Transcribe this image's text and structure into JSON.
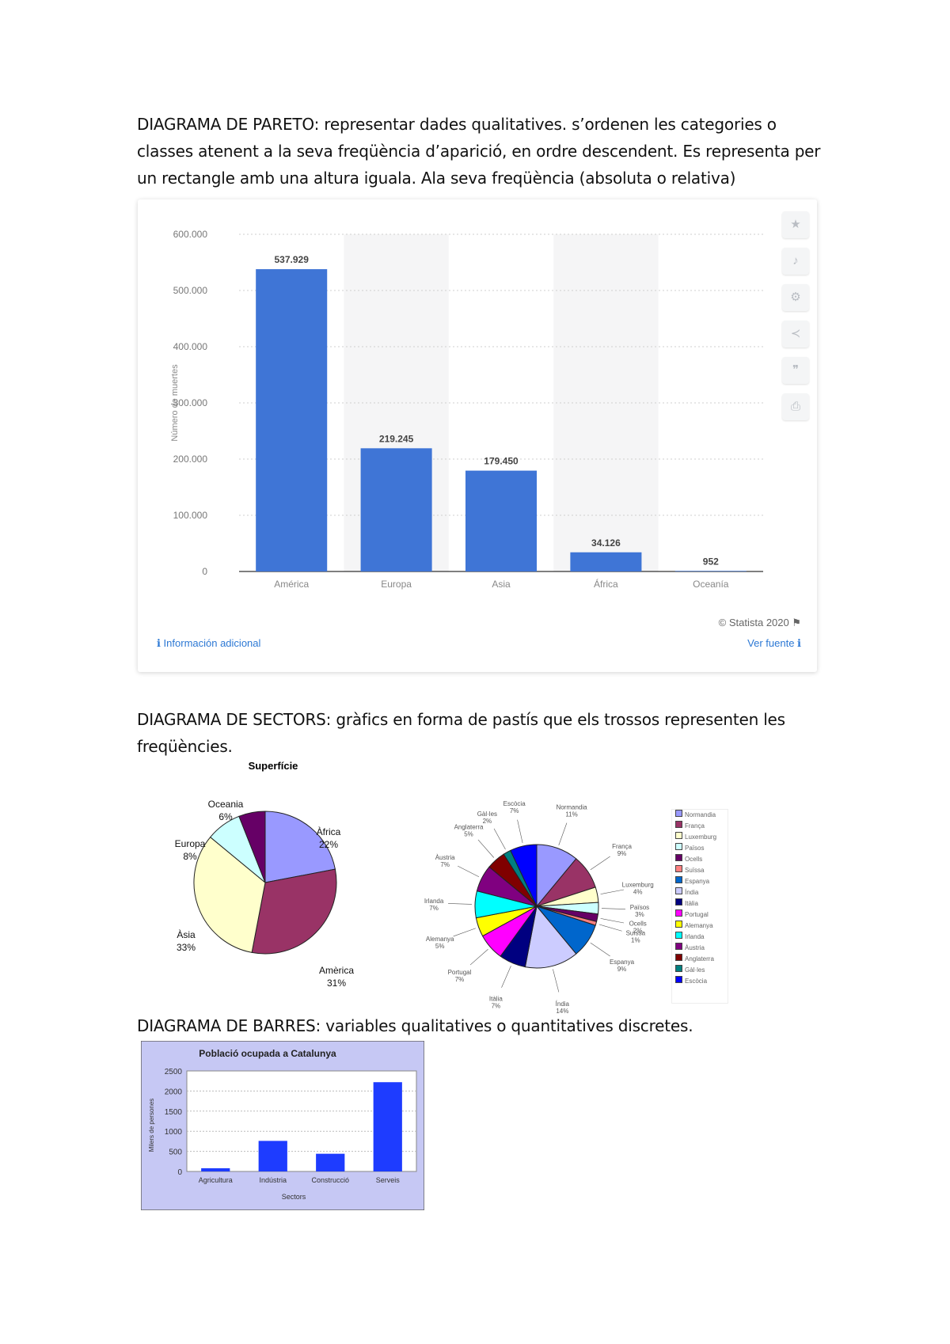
{
  "sections": {
    "pareto": {
      "text_lines": [
        "DIAGRAMA DE PARETO: representar dades qualitatives. s’ordenen les categories o",
        "classes atenent a la seva freqüència d’aparició, en ordre descendent. Es representa per",
        "un rectangle amb una altura iguala. Ala seva freqüència (absoluta o relativa)"
      ]
    },
    "sectors": {
      "text_lines": [
        "DIAGRAMA DE SECTORS: gràfics en forma de pastís que els trossos representen les",
        "freqüències."
      ]
    },
    "barres": {
      "text_lines": [
        "DIAGRAMA DE BARRES: variables qualitatives o quantitatives discretes."
      ]
    }
  },
  "statista": {
    "copyright": "© Statista 2020 ⚑",
    "info_link": "ℹ Información adicional",
    "source_link": "Ver fuente ℹ",
    "icons": [
      "star-icon",
      "bell-icon",
      "gear-icon",
      "share-icon",
      "quote-icon",
      "print-icon"
    ]
  },
  "chart_data": [
    {
      "type": "bar",
      "title": "",
      "ylabel": "Número de muertes",
      "xlabel": "",
      "categories": [
        "América",
        "Europa",
        "Asia",
        "África",
        "Oceanía"
      ],
      "values": [
        537929,
        219245,
        179450,
        34126,
        952
      ],
      "value_labels": [
        "537.929",
        "219.245",
        "179.450",
        "34.126",
        "952"
      ],
      "ylim": [
        0,
        600000
      ],
      "yticks": [
        0,
        100000,
        200000,
        300000,
        400000,
        500000,
        600000
      ],
      "ytick_labels": [
        "0",
        "100.000",
        "200.000",
        "300.000",
        "400.000",
        "500.000",
        "600.000"
      ],
      "color": "#3f75d6",
      "grid": true
    },
    {
      "type": "pie",
      "title": "Superfície",
      "labels": [
        "Àfrica",
        "Amèrica",
        "Àsia",
        "Europa",
        "Oceania"
      ],
      "values": [
        22,
        31,
        33,
        8,
        6
      ],
      "percent_labels": [
        "22%",
        "31%",
        "33%",
        "8%",
        "6%"
      ],
      "colors": [
        "#9999ff",
        "#993366",
        "#ffffcc",
        "#ccffff",
        "#660066"
      ]
    },
    {
      "type": "pie",
      "title": "",
      "labels": [
        "Normandia",
        "França",
        "Luxemburg",
        "Països",
        "Ocells",
        "Suïssa",
        "Espanya",
        "Índia",
        "Itàlia",
        "Portugal",
        "Alemanya",
        "Irlanda",
        "Àustria",
        "Anglaterra",
        "Gàl·les",
        "Escòcia"
      ],
      "values": [
        11,
        9,
        4,
        3,
        2,
        1,
        9,
        14,
        7,
        7,
        5,
        7,
        7,
        5,
        2,
        7
      ],
      "percent_labels": [
        "11%",
        "9%",
        "4%",
        "3%",
        "2%",
        "1%",
        "9%",
        "14%",
        "7%",
        "7%",
        "5%",
        "7%",
        "7%",
        "5%",
        "2%",
        "7%"
      ],
      "colors": [
        "#9999ff",
        "#993366",
        "#ffffcc",
        "#ccffff",
        "#660066",
        "#ff8080",
        "#0066cc",
        "#ccccff",
        "#000080",
        "#ff00ff",
        "#ffff00",
        "#00ffff",
        "#800080",
        "#800000",
        "#008080",
        "#0000ff"
      ]
    },
    {
      "type": "bar",
      "title": "Població ocupada a Catalunya",
      "xlabel": "Sectors",
      "ylabel": "Milers de persones",
      "categories": [
        "Agricultura",
        "Indústria",
        "Construcció",
        "Serveis"
      ],
      "values": [
        80,
        760,
        440,
        2220
      ],
      "ylim": [
        0,
        2500
      ],
      "yticks": [
        0,
        500,
        1000,
        1500,
        2000,
        2500
      ],
      "ytick_labels": [
        "0",
        "500",
        "1000",
        "1500",
        "2000",
        "2500"
      ],
      "color": "#1e3cff"
    }
  ]
}
